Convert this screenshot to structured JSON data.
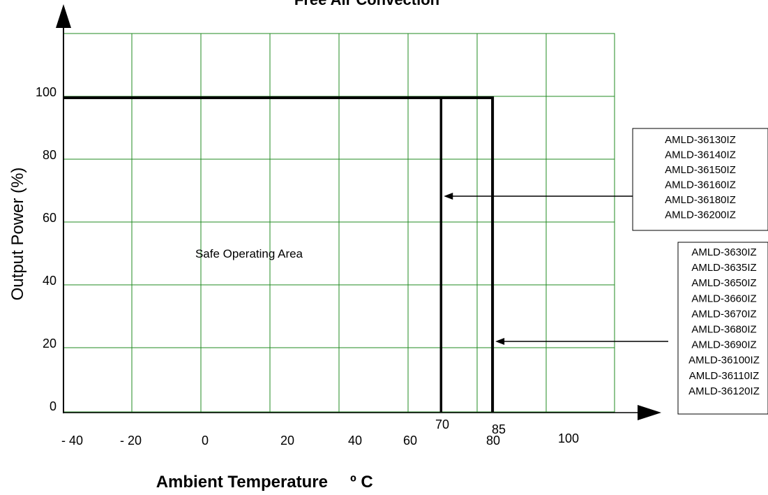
{
  "chart_data": {
    "type": "line",
    "title": "Free Air Convection",
    "xlabel": "Ambient Temperature",
    "xlabel_unit": "º C",
    "ylabel": "Output Power (%)",
    "x_tick_labels": [
      "- 40",
      "- 20",
      "0",
      "20",
      "40",
      "60",
      "80",
      "100"
    ],
    "y_tick_labels": [
      "0",
      "20",
      "40",
      "60",
      "80",
      "100"
    ],
    "cutoff_labels": [
      "70",
      "85"
    ],
    "region_label": "Safe Operating Area",
    "grid": true,
    "grid_color": "#228b22",
    "line_color": "#000000",
    "series": [
      {
        "x": [
          -40,
          70,
          70
        ],
        "y": [
          100,
          100,
          0
        ],
        "models": [
          "AMLD-36130IZ",
          "AMLD-36140IZ",
          "AMLD-36150IZ",
          "AMLD-36160IZ",
          "AMLD-36180IZ",
          "AMLD-36200IZ"
        ]
      },
      {
        "x": [
          -40,
          85,
          85
        ],
        "y": [
          100,
          100,
          0
        ],
        "models": [
          "AMLD-3630IZ",
          "AMLD-3635IZ",
          "AMLD-3650IZ",
          "AMLD-3660IZ",
          "AMLD-3670IZ",
          "AMLD-3680IZ",
          "AMLD-3690IZ",
          "AMLD-36100IZ",
          "AMLD-36110IZ",
          "AMLD-36120IZ"
        ]
      }
    ]
  }
}
